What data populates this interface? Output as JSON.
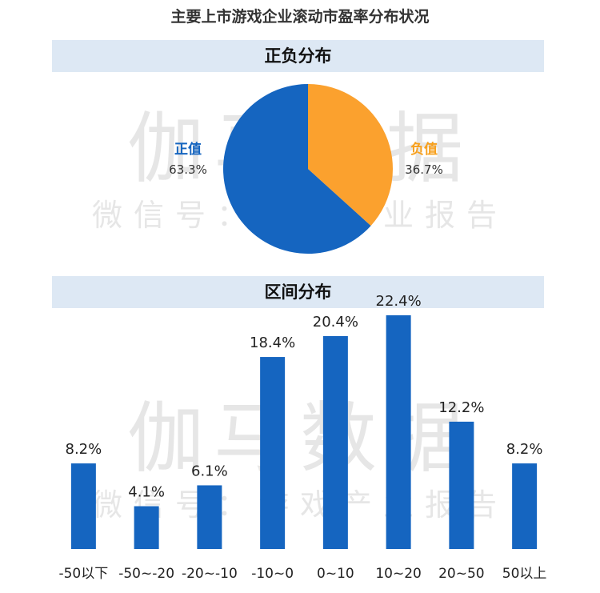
{
  "title": "主要上市游戏企业滚动市盈率分布状况",
  "watermark": {
    "main": "伽马数据",
    "sub": "微信号：游戏产业报告"
  },
  "colors": {
    "positive": "#1565c0",
    "negative": "#fba12e",
    "bar": "#1565c0",
    "header_bg": "#dde8f4"
  },
  "chart_data": [
    {
      "type": "pie",
      "title": "正负分布",
      "labels": [
        "正值",
        "负值"
      ],
      "values": [
        63.3,
        36.7
      ],
      "value_labels": [
        "63.3%",
        "36.7%"
      ],
      "colors": [
        "#1565c0",
        "#fba12e"
      ]
    },
    {
      "type": "bar",
      "title": "区间分布",
      "categories": [
        "-50以下",
        "-50~-20",
        "-20~-10",
        "-10~0",
        "0~10",
        "10~20",
        "20~50",
        "50以上"
      ],
      "values": [
        8.2,
        4.1,
        6.1,
        18.4,
        20.4,
        22.4,
        12.2,
        8.2
      ],
      "value_labels": [
        "8.2%",
        "4.1%",
        "6.1%",
        "18.4%",
        "20.4%",
        "22.4%",
        "12.2%",
        "8.2%"
      ],
      "ylim": [
        0,
        25
      ],
      "color": "#1565c0"
    }
  ]
}
